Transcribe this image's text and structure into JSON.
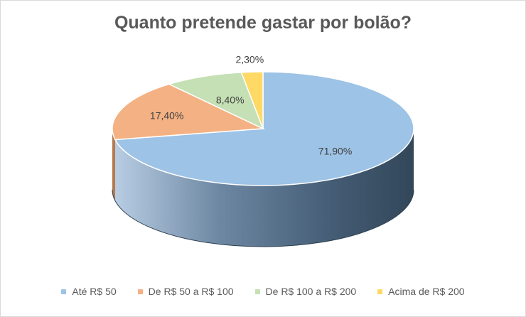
{
  "chart_data": {
    "type": "pie",
    "title": "Quanto pretende gastar por bolão?",
    "categories": [
      "Até R$ 50",
      "De R$ 50 a R$ 100",
      "De R$ 100 a R$ 200",
      "Acima de R$ 200"
    ],
    "values": [
      71.9,
      17.4,
      8.4,
      2.3
    ],
    "labels": [
      "71,90%",
      "17,40%",
      "8,40%",
      "2,30%"
    ],
    "colors": [
      "#9DC3E6",
      "#F4B183",
      "#C5E0B4",
      "#FFD966"
    ],
    "side_colors": [
      "#5A7186",
      "#B77A4D",
      "#8EA77D",
      "#C9A73A"
    ],
    "legend_position": "bottom",
    "pie_3d": true
  }
}
